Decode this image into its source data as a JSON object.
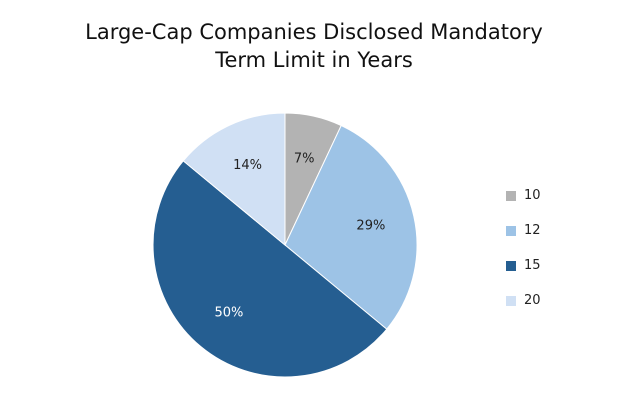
{
  "chart_data": {
    "type": "pie",
    "title_lines": [
      "Large-Cap Companies Disclosed Mandatory",
      "Term Limit in Years"
    ],
    "slices": [
      {
        "label": "10",
        "value": 7,
        "display": "7%",
        "color": "#b3b3b3",
        "text_color": "#222222"
      },
      {
        "label": "12",
        "value": 29,
        "display": "29%",
        "color": "#9dc3e6",
        "text_color": "#222222"
      },
      {
        "label": "15",
        "value": 50,
        "display": "50%",
        "color": "#255e91",
        "text_color": "#ffffff"
      },
      {
        "label": "20",
        "value": 14,
        "display": "14%",
        "color": "#d0e0f4",
        "text_color": "#222222"
      }
    ],
    "legend_position": "right"
  }
}
